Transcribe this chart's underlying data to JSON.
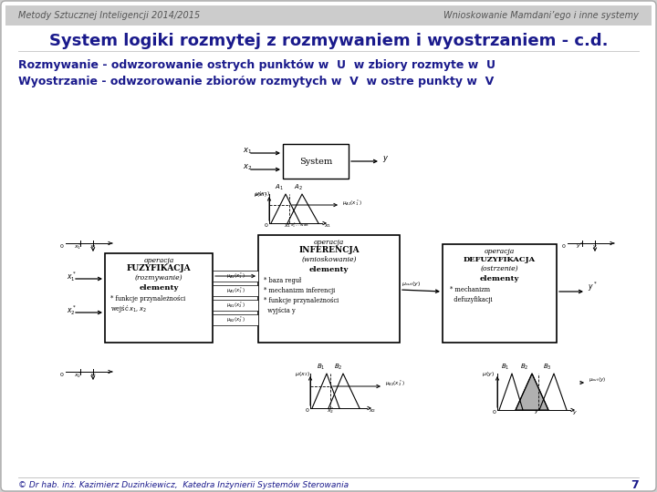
{
  "bg_color": "#d0d0d0",
  "slide_bg": "#ffffff",
  "border_color": "#aaaaaa",
  "header_left": "Metody Sztucznej Inteligencji 2014/2015",
  "header_right": "Wnioskowanie Mamdani’ego i inne systemy",
  "title": "System logiki rozmytej z rozmywaniem i wyostrzaniem - c.d.",
  "line1": "Rozmywanie - odwzorowanie ostrych punktów w  U  w zbiory rozmyte w  U",
  "line2": "Wyostrzanie - odwzorowanie zbiorów rozmytych w  V  w ostre punkty w  V",
  "footer": "© Dr hab. inż. Kazimierz Duzinkiewicz,  Katedra Inżynierii Systemów Sterowania",
  "page_num": "7",
  "title_color": "#1a1a8c",
  "text_color": "#1a1a8c",
  "header_color": "#555555",
  "footer_color": "#1a1a8c",
  "title_fontsize": 13,
  "text_fontsize": 9,
  "header_fontsize": 7
}
